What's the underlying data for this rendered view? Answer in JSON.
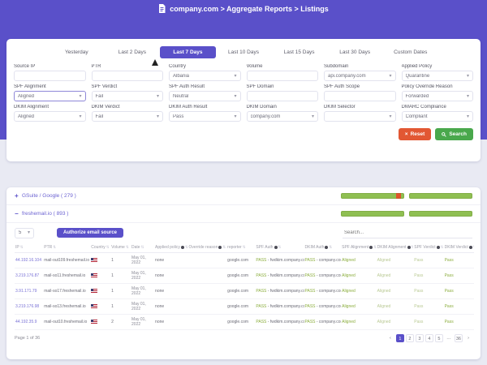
{
  "titlebar": {
    "title": "company.com > Aggregate Reports > Listings"
  },
  "tabs": [
    {
      "label": "Yesterday",
      "active": false
    },
    {
      "label": "Last 2 Days",
      "active": false
    },
    {
      "label": "Last 7 Days",
      "active": true
    },
    {
      "label": "Last 10 Days",
      "active": false
    },
    {
      "label": "Last 15 Days",
      "active": false
    },
    {
      "label": "Last 30 Days",
      "active": false
    },
    {
      "label": "Custom Dates",
      "active": false
    }
  ],
  "filters": [
    {
      "label": "Source IP",
      "type": "text",
      "value": ""
    },
    {
      "label": "PTR",
      "type": "text",
      "value": ""
    },
    {
      "label": "Country",
      "type": "select",
      "value": "Albania"
    },
    {
      "label": "Volume",
      "type": "text",
      "value": ""
    },
    {
      "label": "Subdomain",
      "type": "select",
      "value": "api.company.com"
    },
    {
      "label": "Applied Policy",
      "type": "select",
      "value": "Quarantine"
    },
    {
      "label": "SPF Alignment",
      "type": "select",
      "value": "Aligned"
    },
    {
      "label": "SPF Verdict",
      "type": "select",
      "value": "Fail"
    },
    {
      "label": "SPF Auth Result",
      "type": "select",
      "value": "Neutral"
    },
    {
      "label": "SPF Domain",
      "type": "text",
      "value": ""
    },
    {
      "label": "SPF Auth Scope",
      "type": "text",
      "value": ""
    },
    {
      "label": "Policy Override Reason",
      "type": "select",
      "value": "Forwarded"
    },
    {
      "label": "DKIM Alignment",
      "type": "select",
      "value": "Aligned"
    },
    {
      "label": "DKIM Verdict",
      "type": "select",
      "value": "Fail"
    },
    {
      "label": "DKIM Auth Result",
      "type": "select",
      "value": "Pass"
    },
    {
      "label": "DKIM Domain",
      "type": "select",
      "value": "company.com"
    },
    {
      "label": "DKIM Selector",
      "type": "select",
      "value": ""
    },
    {
      "label": "DMARC Compliance",
      "type": "select",
      "value": "Compliant"
    }
  ],
  "actions": {
    "reset": "Reset",
    "search": "Search"
  },
  "sources": [
    {
      "toggle": "+",
      "name": "GSuite / Google ( 279 )",
      "bars": [
        [
          {
            "pct": 87,
            "color": "#8fbf52"
          },
          {
            "pct": 8,
            "color": "#e0532a"
          },
          {
            "pct": 5,
            "color": "#8fbf52"
          }
        ],
        [
          {
            "pct": 100,
            "color": "#8fbf52"
          }
        ]
      ]
    },
    {
      "toggle": "−",
      "name": "freshemail.io ( 893 )",
      "bars": [
        [
          {
            "pct": 100,
            "color": "#8fbf52"
          }
        ],
        [
          {
            "pct": 100,
            "color": "#8fbf52"
          }
        ]
      ]
    }
  ],
  "toolbar": {
    "page_size": "5",
    "authorize_label": "Authorize email source",
    "search_placeholder": "Search..."
  },
  "table": {
    "columns": [
      {
        "label": "IP",
        "info": false
      },
      {
        "label": "PTR",
        "info": false
      },
      {
        "label": "Country",
        "info": false
      },
      {
        "label": "Volume",
        "info": false
      },
      {
        "label": "Date",
        "info": false
      },
      {
        "label": "Applied policy",
        "info": true
      },
      {
        "label": "Override reason",
        "info": true
      },
      {
        "label": "reporter",
        "info": false
      },
      {
        "label": "SPF Auth",
        "info": true
      },
      {
        "label": "DKIM Auth",
        "info": true
      },
      {
        "label": "SPF Alignment",
        "info": true
      },
      {
        "label": "DKIM Alignment",
        "info": true
      },
      {
        "label": "SPF Verdict",
        "info": true
      },
      {
        "label": "DKIM Verdict",
        "info": true
      }
    ],
    "rows": [
      {
        "ip": "44.192.16.104",
        "ptr": "mail-out109.freshemail.io",
        "country": "US",
        "volume": "1",
        "date1": "May 01,",
        "date2": "2022",
        "applied_policy": "none",
        "override_reason": "",
        "reporter": "google.com",
        "spf_auth_status": "PASS",
        "spf_auth_domain": "- fwdkim.company.com",
        "dkim_auth_status": "PASS",
        "dkim_auth_domain": "- company.com",
        "spf_alignment": "Aligned",
        "dkim_alignment": "Aligned",
        "spf_verdict": "Pass",
        "dkim_verdict": "Pass"
      },
      {
        "ip": "3.219.176.87",
        "ptr": "mail-so11.freshemail.io",
        "country": "US",
        "volume": "1",
        "date1": "May 01,",
        "date2": "2022",
        "applied_policy": "none",
        "override_reason": "",
        "reporter": "google.com",
        "spf_auth_status": "PASS",
        "spf_auth_domain": "- fwdkim.company.com",
        "dkim_auth_status": "PASS",
        "dkim_auth_domain": "- company.com",
        "spf_alignment": "Aligned",
        "dkim_alignment": "Aligned",
        "spf_verdict": "Pass",
        "dkim_verdict": "Pass"
      },
      {
        "ip": "3.91.171.79",
        "ptr": "mail-so17.freshemail.io",
        "country": "US",
        "volume": "1",
        "date1": "May 01,",
        "date2": "2022",
        "applied_policy": "none",
        "override_reason": "",
        "reporter": "google.com",
        "spf_auth_status": "PASS",
        "spf_auth_domain": "- fwdkim.company.com",
        "dkim_auth_status": "PASS",
        "dkim_auth_domain": "- company.com",
        "spf_alignment": "Aligned",
        "dkim_alignment": "Aligned",
        "spf_verdict": "Pass",
        "dkim_verdict": "Pass"
      },
      {
        "ip": "3.219.176.98",
        "ptr": "mail-so13.freshemail.io",
        "country": "US",
        "volume": "1",
        "date1": "May 01,",
        "date2": "2022",
        "applied_policy": "none",
        "override_reason": "",
        "reporter": "google.com",
        "spf_auth_status": "PASS",
        "spf_auth_domain": "- fwdkim.company.com",
        "dkim_auth_status": "PASS",
        "dkim_auth_domain": "- company.com",
        "spf_alignment": "Aligned",
        "dkim_alignment": "Aligned",
        "spf_verdict": "Pass",
        "dkim_verdict": "Pass"
      },
      {
        "ip": "44.192.35.9",
        "ptr": "mail-out10.freshemail.io",
        "country": "US",
        "volume": "2",
        "date1": "May 01,",
        "date2": "2022",
        "applied_policy": "none",
        "override_reason": "",
        "reporter": "google.com",
        "spf_auth_status": "PASS",
        "spf_auth_domain": "- fwdkim.company.com",
        "dkim_auth_status": "PASS",
        "dkim_auth_domain": "- company.com",
        "spf_alignment": "Aligned",
        "dkim_alignment": "Aligned",
        "spf_verdict": "Pass",
        "dkim_verdict": "Pass"
      }
    ]
  },
  "pagination": {
    "summary": "Page 1 of 36",
    "prev": "‹",
    "next": "›",
    "pages": [
      "1",
      "2",
      "3",
      "4",
      "5",
      "…",
      "36"
    ],
    "active_page": "1"
  },
  "icons": {
    "chevron_down": "▾",
    "sort": "⇅",
    "reset_x": "×"
  },
  "colors": {
    "accent_purple": "#5a50c9",
    "bar_green": "#8fbf52",
    "bar_red": "#e0532a",
    "reset_red": "#e25733",
    "search_green": "#49a84c",
    "pass_green": "#8cae3f"
  }
}
